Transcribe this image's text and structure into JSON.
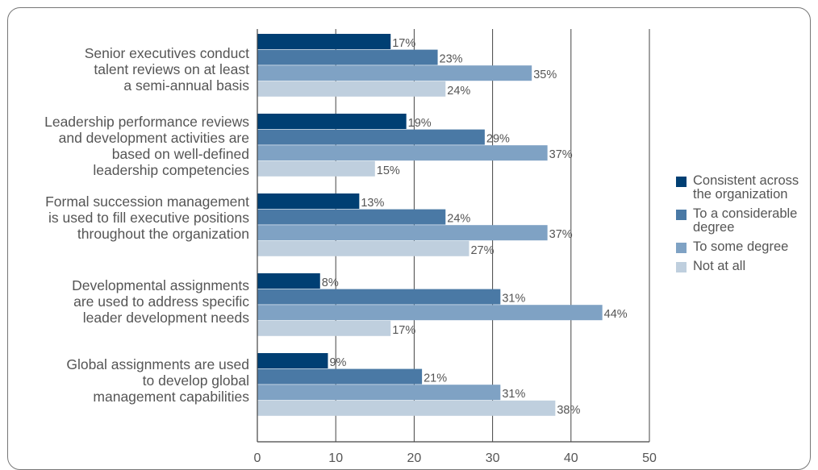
{
  "chart_data": {
    "type": "bar",
    "orientation": "horizontal",
    "categories": [
      "Senior executives conduct\ntalent reviews on at least\na semi-annual basis",
      "Leadership performance reviews\nand development activities are\nbased on well-defined\nleadership competencies",
      "Formal succession management\nis used to fill executive positions\nthroughout the organization",
      "Developmental assignments\nare used to address specific\nleader development needs",
      "Global assignments are used\nto develop global\nmanagement capabilities"
    ],
    "series": [
      {
        "name": "Consistent across the organization",
        "color": "#003f73",
        "values": [
          17,
          19,
          13,
          8,
          9
        ]
      },
      {
        "name": "To a considerable degree",
        "color": "#4a79a5",
        "values": [
          23,
          29,
          24,
          31,
          21
        ]
      },
      {
        "name": "To some degree",
        "color": "#7fa2c4",
        "values": [
          35,
          37,
          37,
          44,
          31
        ]
      },
      {
        "name": "Not at all",
        "color": "#bfcfde",
        "values": [
          24,
          15,
          27,
          17,
          38
        ]
      }
    ],
    "value_suffix": "%",
    "xlim": [
      0,
      50
    ],
    "xticks": [
      0,
      10,
      20,
      30,
      40,
      50
    ],
    "grid": "vertical",
    "legend": "right",
    "title": "",
    "xlabel": "",
    "ylabel": ""
  },
  "colors": {
    "grid": "#444444",
    "axis": "#444444",
    "text": "#555555"
  }
}
